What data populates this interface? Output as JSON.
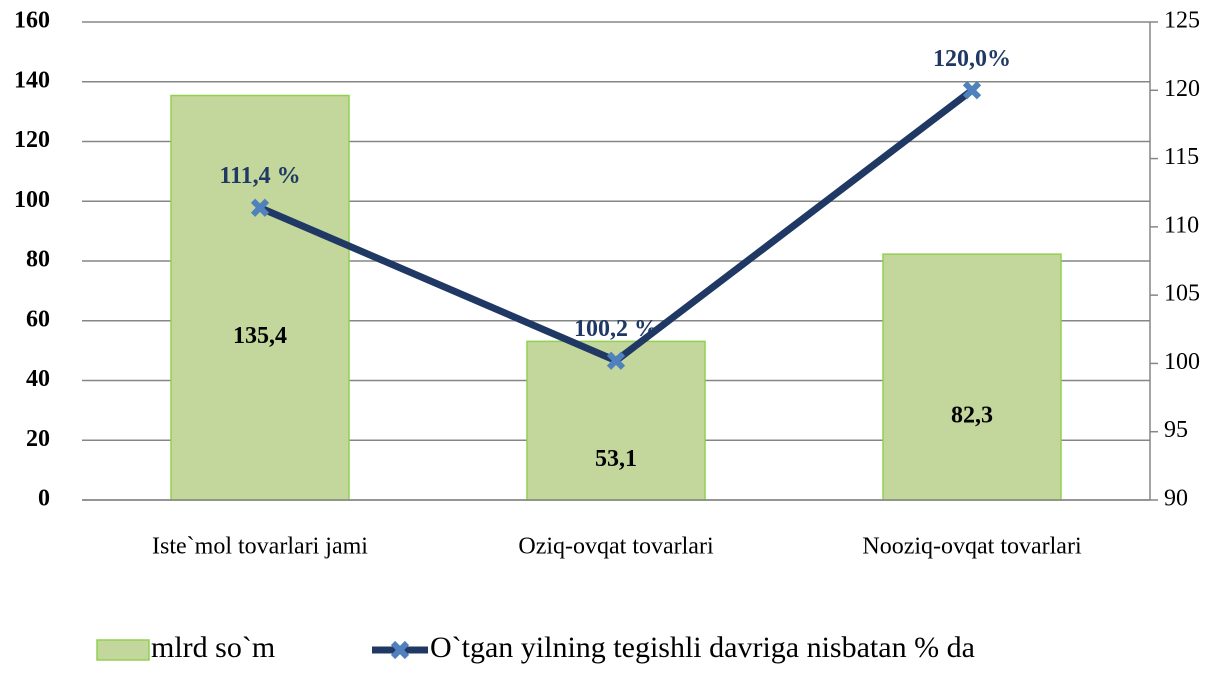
{
  "chart_data": {
    "type": "bar+line",
    "categories": [
      "Iste`mol tovarlari jami",
      "Oziq-ovqat tovarlari",
      "Nooziq-ovqat tovarlari"
    ],
    "series": [
      {
        "name": "mlrd so`m",
        "type": "bar",
        "color": "#c3d69b",
        "values": [
          135.4,
          53.1,
          82.3
        ],
        "value_labels": [
          "135,4",
          "53,1",
          "82,3"
        ]
      },
      {
        "name": "O`tgan yilning tegishli davriga nisbatan % da",
        "type": "line",
        "axis": "y2",
        "color": "#1f3864",
        "marker_color": "#4f81bd",
        "values": [
          111.4,
          100.2,
          120.0
        ],
        "value_labels": [
          "111,4 %",
          "100,2 %",
          "120,0%"
        ]
      }
    ],
    "ylim": [
      0,
      160
    ],
    "yticks": [
      0,
      20,
      40,
      60,
      80,
      100,
      120,
      140,
      160
    ],
    "y2lim": [
      90,
      125
    ],
    "y2ticks": [
      90,
      95,
      100,
      105,
      110,
      115,
      120,
      125
    ],
    "grid": true,
    "legend": "bottom"
  }
}
